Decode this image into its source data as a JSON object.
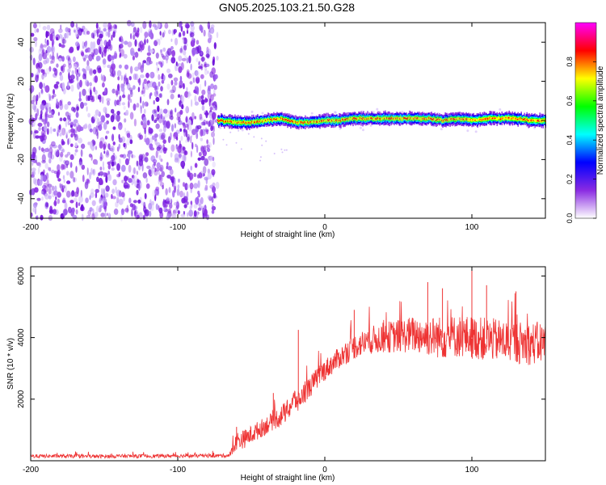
{
  "title": "GN05.2025.103.21.50.G28",
  "chart_data": [
    {
      "type": "heatmap",
      "xlabel": "Height of straight line (km)",
      "ylabel": "Frequency (Hz)",
      "xlim": [
        -200,
        150
      ],
      "ylim": [
        -50,
        50
      ],
      "x_ticks": [
        -200,
        -100,
        0,
        100
      ],
      "y_ticks": [
        -40,
        -20,
        0,
        20,
        40
      ],
      "colorbar": {
        "label": "Normalized spectral amplitude",
        "range": [
          0,
          1
        ],
        "ticks": [
          "0.0",
          "0.2",
          "0.4",
          "0.6",
          "0.8"
        ],
        "colors": [
          "#ffffff",
          "#8a2be2",
          "#0000ff",
          "#00ffff",
          "#00ff00",
          "#ffff00",
          "#ff0000",
          "#ff00ff"
        ]
      },
      "noise_region": {
        "x": [
          -200,
          -73
        ],
        "freq": [
          -50,
          50
        ],
        "amplitude_max": 0.3
      },
      "signal_track": {
        "x": [
          -73,
          -60,
          -50,
          -40,
          -30,
          -20,
          -10,
          0,
          10,
          20,
          30,
          40,
          50,
          60,
          70,
          80,
          90,
          100,
          110,
          120,
          130,
          140,
          150
        ],
        "freq": [
          0,
          -1,
          -1,
          0,
          1,
          -1,
          -1,
          0,
          0,
          1,
          1,
          1,
          1,
          1,
          1,
          0,
          1,
          0,
          1,
          1,
          1,
          0,
          0
        ]
      }
    },
    {
      "type": "line",
      "xlabel": "Height of straight line (km)",
      "ylabel": "SNR (10 * v/v)",
      "xlim": [
        -200,
        150
      ],
      "ylim": [
        0,
        6300
      ],
      "x_ticks": [
        -200,
        -100,
        0,
        100
      ],
      "y_ticks": [
        2000,
        4000,
        6000
      ],
      "series": [
        {
          "color": "#ee3333",
          "x": [
            -200,
            -180,
            -160,
            -140,
            -120,
            -100,
            -80,
            -65,
            -62,
            -60,
            -55,
            -50,
            -45,
            -40,
            -35,
            -30,
            -25,
            -22,
            -20,
            -18,
            -15,
            -10,
            -5,
            0,
            10,
            20,
            30,
            40,
            50,
            60,
            70,
            80,
            90,
            100,
            110,
            120,
            130,
            140,
            150
          ],
          "y": [
            150,
            150,
            140,
            150,
            150,
            160,
            160,
            170,
            400,
            650,
            700,
            850,
            1000,
            1150,
            1300,
            1450,
            1650,
            1900,
            2000,
            1900,
            2150,
            2400,
            2700,
            2950,
            3350,
            3700,
            3900,
            4000,
            4050,
            4100,
            4050,
            4000,
            4050,
            4000,
            3950,
            3900,
            3850,
            3800,
            3850
          ],
          "noise_amplitude": [
            60,
            60,
            60,
            60,
            60,
            60,
            60,
            60,
            200,
            300,
            300,
            300,
            300,
            300,
            300,
            350,
            350,
            400,
            400,
            350,
            350,
            350,
            350,
            350,
            350,
            400,
            450,
            500,
            550,
            600,
            650,
            700,
            700,
            700,
            700,
            700,
            700,
            700,
            700
          ],
          "peaks": [
            [
              -60,
              1100
            ],
            [
              -18,
              4250
            ],
            [
              -35,
              2200
            ],
            [
              20,
              4900
            ],
            [
              70,
              5800
            ],
            [
              80,
              5600
            ],
            [
              100,
              6300
            ],
            [
              110,
              5700
            ],
            [
              130,
              5500
            ],
            [
              150,
              5500
            ]
          ]
        }
      ]
    }
  ]
}
